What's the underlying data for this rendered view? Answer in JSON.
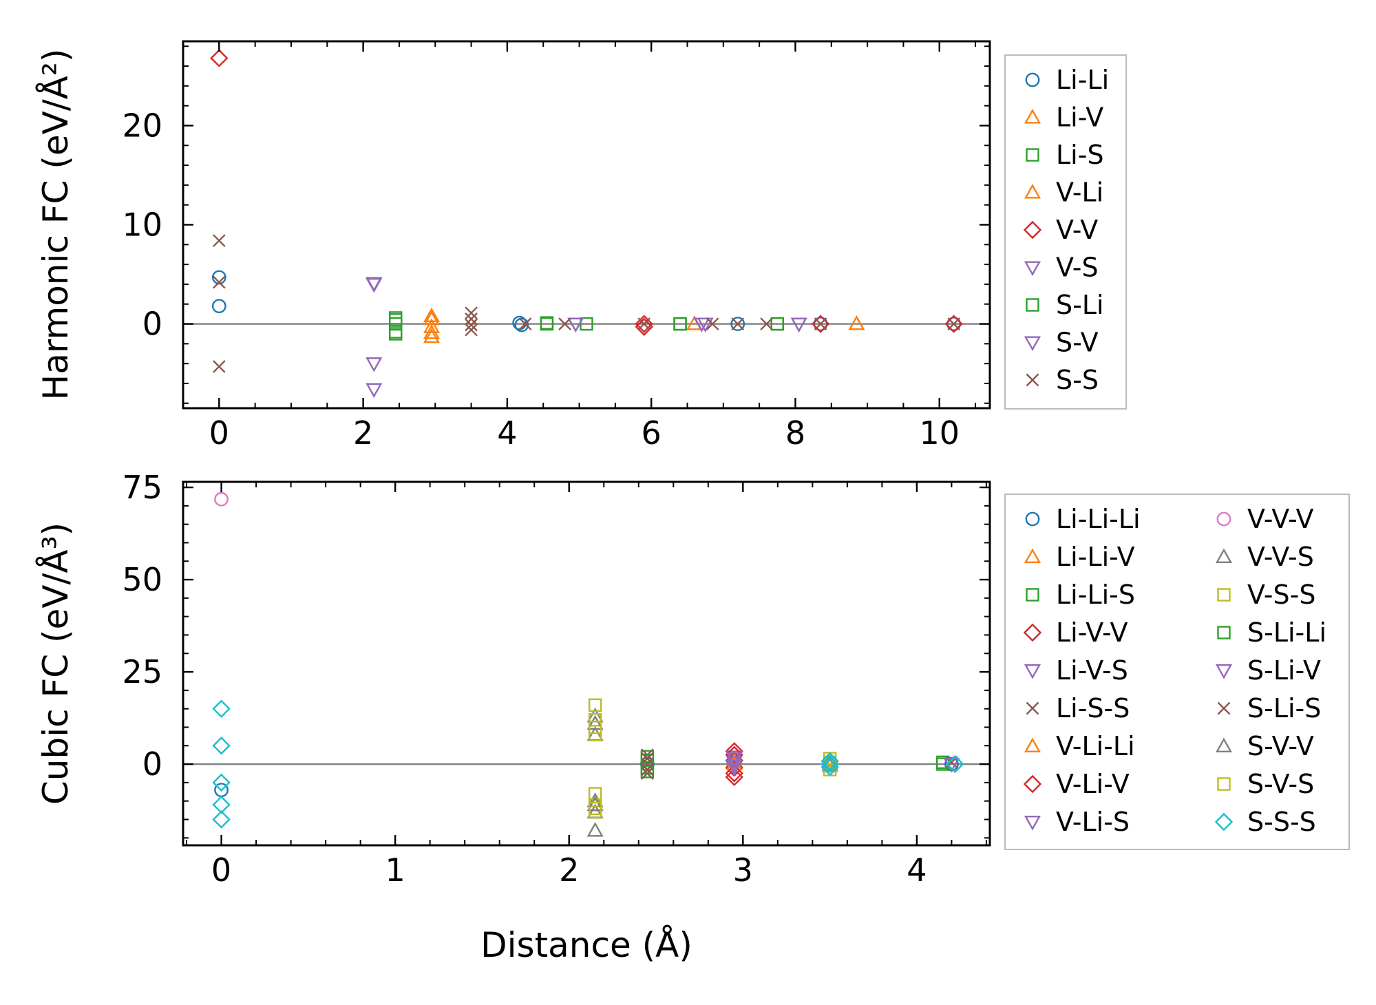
{
  "chart_data": [
    {
      "type": "scatter",
      "ylabel": "Harmonic FC (eV/Å²)",
      "xlabel": "",
      "xlim": [
        -0.5,
        10.7
      ],
      "ylim": [
        -8.5,
        28.5
      ],
      "xticks": [
        0,
        2,
        4,
        6,
        8,
        10
      ],
      "xtick_labels": [
        "0",
        "2",
        "4",
        "6",
        "8",
        "10"
      ],
      "yticks": [
        0,
        10,
        20
      ],
      "ytick_labels": [
        "0",
        "10",
        "20"
      ],
      "reference_line_y": 0,
      "legend": {
        "placement": "outside-right",
        "columns": 1
      },
      "series": [
        {
          "name": "Li-Li",
          "marker": "circle",
          "color": "#1f77b4",
          "points": [
            [
              0,
              4.7
            ],
            [
              0,
              1.8
            ],
            [
              4.17,
              0.1
            ],
            [
              4.2,
              -0.1
            ],
            [
              7.2,
              0
            ],
            [
              8.35,
              0
            ],
            [
              10.2,
              0
            ]
          ]
        },
        {
          "name": "Li-V",
          "marker": "triangle-up",
          "color": "#ff7f0e",
          "points": [
            [
              2.95,
              0.5
            ],
            [
              2.95,
              -0.3
            ],
            [
              2.95,
              -1.3
            ],
            [
              6.6,
              0
            ],
            [
              8.85,
              0
            ]
          ]
        },
        {
          "name": "Li-S",
          "marker": "square",
          "color": "#2ca02c",
          "points": [
            [
              2.45,
              0.6
            ],
            [
              2.45,
              0
            ],
            [
              2.45,
              -0.8
            ],
            [
              4.55,
              0
            ],
            [
              6.4,
              0
            ],
            [
              7.75,
              0
            ]
          ]
        },
        {
          "name": "V-Li",
          "marker": "triangle-up",
          "color": "#ff7f0e",
          "points": [
            [
              2.95,
              0.8
            ],
            [
              2.95,
              -0.9
            ],
            [
              8.85,
              0
            ]
          ]
        },
        {
          "name": "V-V",
          "marker": "diamond",
          "color": "#d62728",
          "points": [
            [
              0,
              26.8
            ],
            [
              5.9,
              0
            ],
            [
              5.9,
              -0.3
            ],
            [
              8.35,
              0
            ],
            [
              10.2,
              0
            ]
          ]
        },
        {
          "name": "V-S",
          "marker": "triangle-down",
          "color": "#9467bd",
          "points": [
            [
              2.15,
              4.1
            ],
            [
              2.15,
              -4.0
            ],
            [
              2.15,
              -6.6
            ],
            [
              4.95,
              0
            ],
            [
              6.7,
              0
            ],
            [
              8.05,
              0
            ]
          ]
        },
        {
          "name": "S-Li",
          "marker": "square",
          "color": "#2ca02c",
          "points": [
            [
              2.45,
              0.4
            ],
            [
              2.45,
              -1.0
            ],
            [
              4.55,
              0.1
            ],
            [
              5.1,
              0
            ],
            [
              6.4,
              0
            ],
            [
              7.75,
              0
            ]
          ]
        },
        {
          "name": "S-V",
          "marker": "triangle-down",
          "color": "#9467bd",
          "points": [
            [
              2.15,
              4.0
            ],
            [
              4.95,
              0
            ],
            [
              6.75,
              0
            ],
            [
              8.05,
              0
            ]
          ]
        },
        {
          "name": "S-S",
          "marker": "x",
          "color": "#8c564b",
          "points": [
            [
              0,
              8.4
            ],
            [
              0,
              4.2
            ],
            [
              0,
              -4.3
            ],
            [
              3.5,
              1.1
            ],
            [
              3.5,
              0.5
            ],
            [
              3.5,
              -0.1
            ],
            [
              3.5,
              -0.6
            ],
            [
              4.25,
              0
            ],
            [
              4.8,
              0
            ],
            [
              5.9,
              0
            ],
            [
              6.85,
              0
            ],
            [
              7.2,
              0
            ],
            [
              7.6,
              0
            ],
            [
              8.35,
              0
            ],
            [
              10.2,
              0
            ]
          ]
        }
      ]
    },
    {
      "type": "scatter",
      "ylabel": "Cubic FC (eV/Å³)",
      "xlabel": "Distance (Å)",
      "xlim": [
        -0.22,
        4.42
      ],
      "ylim": [
        -22,
        76.5
      ],
      "xticks": [
        0,
        1,
        2,
        3,
        4
      ],
      "xtick_labels": [
        "0",
        "1",
        "2",
        "3",
        "4"
      ],
      "yticks": [
        0,
        25,
        50,
        75
      ],
      "ytick_labels": [
        "0",
        "25",
        "50",
        "75"
      ],
      "reference_line_y": 0,
      "legend": {
        "placement": "outside-right",
        "columns": 2
      },
      "series": [
        {
          "name": "Li-Li-Li",
          "marker": "circle",
          "color": "#1f77b4",
          "points": [
            [
              0,
              -7
            ],
            [
              2.45,
              0
            ],
            [
              3.5,
              0.5
            ],
            [
              4.2,
              0
            ]
          ]
        },
        {
          "name": "Li-Li-V",
          "marker": "triangle-up",
          "color": "#ff7f0e",
          "points": [
            [
              2.95,
              1
            ],
            [
              3.5,
              -0.5
            ]
          ]
        },
        {
          "name": "Li-Li-S",
          "marker": "square",
          "color": "#2ca02c",
          "points": [
            [
              2.45,
              2
            ],
            [
              2.45,
              -2
            ],
            [
              4.15,
              0
            ]
          ]
        },
        {
          "name": "Li-V-V",
          "marker": "diamond",
          "color": "#d62728",
          "points": [
            [
              2.95,
              3.5
            ],
            [
              2.95,
              1
            ],
            [
              2.95,
              -1
            ],
            [
              2.95,
              -3.5
            ]
          ]
        },
        {
          "name": "Li-V-S",
          "marker": "triangle-down",
          "color": "#9467bd",
          "points": [
            [
              2.95,
              2
            ],
            [
              2.95,
              -1
            ]
          ]
        },
        {
          "name": "Li-S-S",
          "marker": "x",
          "color": "#8c564b",
          "points": [
            [
              2.45,
              2.5
            ],
            [
              2.45,
              0
            ],
            [
              2.45,
              -2.5
            ],
            [
              4.2,
              0.5
            ]
          ]
        },
        {
          "name": "V-Li-Li",
          "marker": "triangle-up",
          "color": "#ff7f0e",
          "points": [
            [
              2.95,
              0
            ],
            [
              3.5,
              1
            ]
          ]
        },
        {
          "name": "V-Li-V",
          "marker": "diamond",
          "color": "#d62728",
          "points": [
            [
              2.95,
              2.5
            ],
            [
              2.95,
              -2.5
            ]
          ]
        },
        {
          "name": "V-Li-S",
          "marker": "triangle-down",
          "color": "#9467bd",
          "points": [
            [
              2.95,
              0.5
            ],
            [
              2.95,
              -0.5
            ]
          ]
        },
        {
          "name": "V-V-V",
          "marker": "circle",
          "color": "#e377c2",
          "points": [
            [
              0,
              71.8
            ]
          ]
        },
        {
          "name": "V-V-S",
          "marker": "triangle-up",
          "color": "#7f7f7f",
          "points": [
            [
              2.15,
              13
            ],
            [
              2.15,
              8
            ],
            [
              2.15,
              -10
            ],
            [
              2.15,
              -13
            ],
            [
              2.15,
              -18
            ]
          ]
        },
        {
          "name": "V-S-S",
          "marker": "square",
          "color": "#bcbd22",
          "points": [
            [
              2.15,
              16
            ],
            [
              2.15,
              12
            ],
            [
              2.15,
              8
            ],
            [
              2.15,
              -8
            ],
            [
              2.15,
              -11
            ],
            [
              2.15,
              -13
            ],
            [
              3.5,
              1.5
            ],
            [
              3.5,
              -1.5
            ]
          ]
        },
        {
          "name": "S-Li-Li",
          "marker": "square",
          "color": "#2ca02c",
          "points": [
            [
              2.45,
              1
            ],
            [
              2.45,
              -1
            ],
            [
              4.15,
              0.5
            ]
          ]
        },
        {
          "name": "S-Li-V",
          "marker": "triangle-down",
          "color": "#9467bd",
          "points": [
            [
              2.95,
              1.5
            ],
            [
              4.2,
              0
            ]
          ]
        },
        {
          "name": "S-Li-S",
          "marker": "x",
          "color": "#8c564b",
          "points": [
            [
              2.45,
              1.5
            ],
            [
              2.45,
              -1.5
            ]
          ]
        },
        {
          "name": "S-V-V",
          "marker": "triangle-up",
          "color": "#7f7f7f",
          "points": [
            [
              2.15,
              11
            ],
            [
              2.15,
              -11
            ],
            [
              3.5,
              0
            ]
          ]
        },
        {
          "name": "S-V-S",
          "marker": "square",
          "color": "#bcbd22",
          "points": [
            [
              2.15,
              10
            ],
            [
              2.15,
              -12
            ],
            [
              3.5,
              0.5
            ]
          ]
        },
        {
          "name": "S-S-S",
          "marker": "diamond",
          "color": "#17becf",
          "points": [
            [
              0,
              15
            ],
            [
              0,
              5
            ],
            [
              0,
              -5
            ],
            [
              0,
              -11
            ],
            [
              0,
              -15
            ],
            [
              3.5,
              0.8
            ],
            [
              3.5,
              0
            ],
            [
              3.5,
              -0.8
            ],
            [
              4.22,
              0
            ]
          ]
        }
      ]
    }
  ]
}
